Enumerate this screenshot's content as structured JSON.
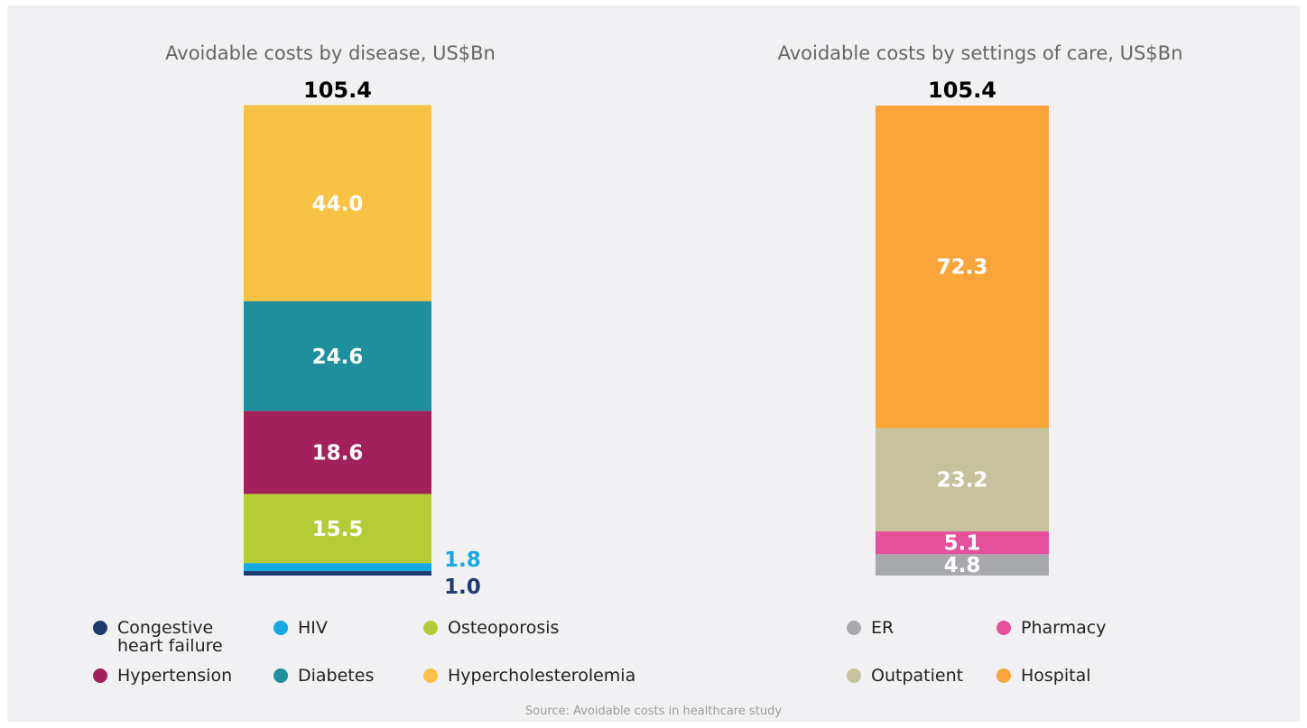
{
  "chart_data": [
    {
      "type": "stacked_bar",
      "title": "Avoidable costs by disease, US$Bn",
      "total": 105.4,
      "series": [
        {
          "name": "Congestive heart failure",
          "color": "#1f3a6e",
          "values": [
            1.0
          ],
          "value_labels": [
            "1.0"
          ]
        },
        {
          "name": "HIV",
          "color": "#14a9e1",
          "values": [
            1.8
          ]
        },
        {
          "name": "Osteoporosis",
          "color": "#b5cc36",
          "values": [
            15.5
          ]
        },
        {
          "name": "Hypertension",
          "color": "#a3215a",
          "values": [
            18.6
          ]
        },
        {
          "name": "Diabetes",
          "color": "#1f8f9e",
          "values": [
            24.6
          ]
        },
        {
          "name": "Hypercholesterolemia",
          "color": "#f8c244",
          "values": [
            44.0
          ],
          "value_labels": [
            "44.0"
          ]
        }
      ]
    },
    {
      "type": "stacked_bar",
      "title": "Avoidable costs by settings of care, US$Bn",
      "total": 105.4,
      "series": [
        {
          "name": "ER",
          "color": "#a7a9ad",
          "values": [
            4.8
          ]
        },
        {
          "name": "Pharmacy",
          "color": "#e4509a",
          "values": [
            5.1
          ]
        },
        {
          "name": "Outpatient",
          "color": "#c5c29d",
          "values": [
            23.2
          ]
        },
        {
          "name": "Hospital",
          "color": "#f9a53a",
          "values": [
            72.3
          ]
        }
      ]
    }
  ],
  "source": "Source: Avoidable costs in healthcare study"
}
